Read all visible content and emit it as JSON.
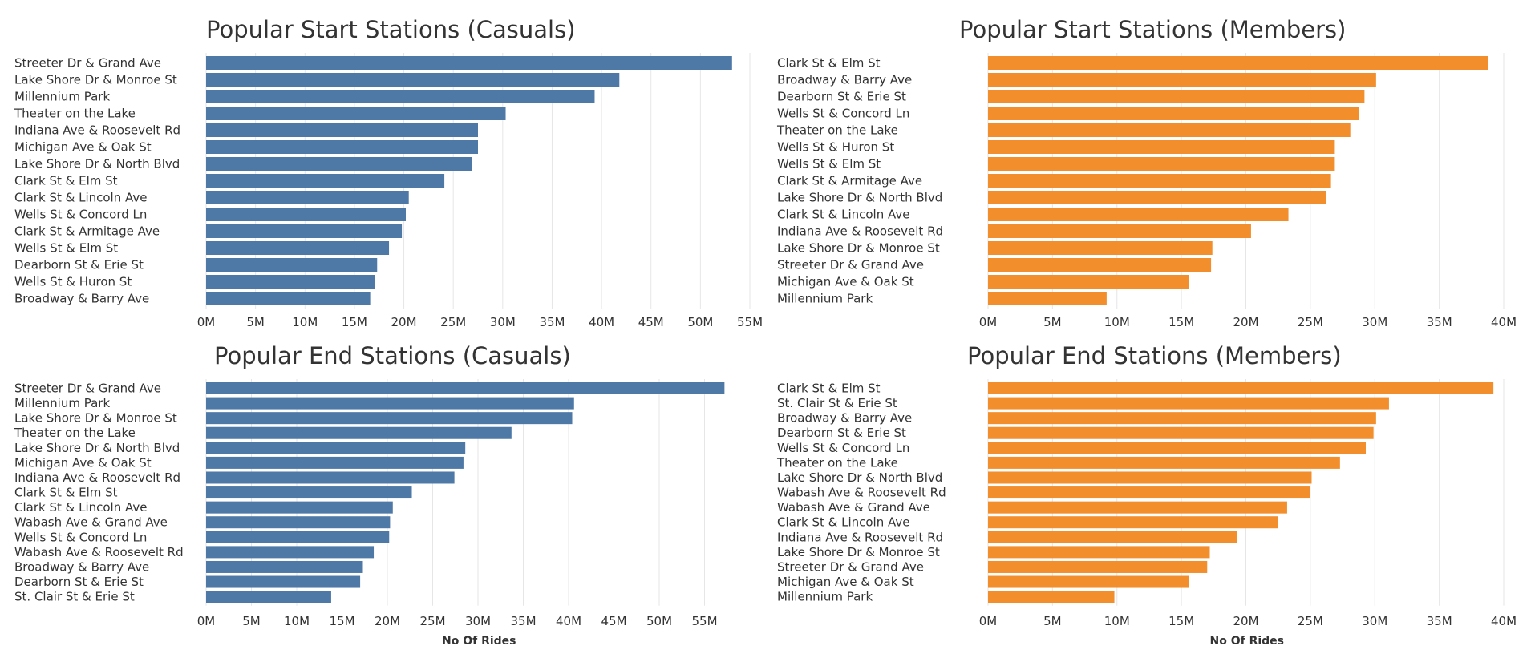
{
  "palette": {
    "casual": "#4e79a7",
    "member": "#f28e2b",
    "grid": "#e6e6e6",
    "text": "#333333"
  },
  "chart_data": [
    {
      "id": "start-casual",
      "type": "bar",
      "orientation": "horizontal",
      "title": "Popular Start Stations (Casuals)",
      "color_key": "casual",
      "categories": [
        "Streeter Dr & Grand Ave",
        "Lake Shore Dr & Monroe St",
        "Millennium Park",
        "Theater on the Lake",
        "Indiana Ave & Roosevelt Rd",
        "Michigan Ave & Oak St",
        "Lake Shore Dr & North Blvd",
        "Clark St & Elm St",
        "Clark St & Lincoln Ave",
        "Wells St & Concord Ln",
        "Clark St & Armitage Ave",
        "Wells St & Elm St",
        "Dearborn St & Erie St",
        "Wells St & Huron St",
        "Broadway & Barry Ave"
      ],
      "values": [
        53.2,
        41.8,
        39.3,
        30.3,
        27.5,
        27.5,
        26.9,
        24.1,
        20.5,
        20.2,
        19.8,
        18.5,
        17.3,
        17.1,
        16.6
      ],
      "xticks": [
        0,
        5,
        10,
        15,
        20,
        25,
        30,
        35,
        40,
        45,
        50,
        55
      ],
      "xtick_labels": [
        "0M",
        "5M",
        "10M",
        "15M",
        "20M",
        "25M",
        "30M",
        "35M",
        "40M",
        "45M",
        "50M",
        "55M"
      ],
      "xlim": [
        0,
        55
      ],
      "xlabel": "",
      "grid": true
    },
    {
      "id": "start-member",
      "type": "bar",
      "orientation": "horizontal",
      "title": "Popular Start Stations (Members)",
      "color_key": "member",
      "categories": [
        "Clark St & Elm St",
        "Broadway & Barry Ave",
        "Dearborn St & Erie St",
        "Wells St & Concord Ln",
        "Theater on the Lake",
        "Wells St & Huron St",
        "Wells St & Elm St",
        "Clark St & Armitage Ave",
        "Lake Shore Dr & North Blvd",
        "Clark St & Lincoln Ave",
        "Indiana Ave & Roosevelt Rd",
        "Lake Shore Dr & Monroe St",
        "Streeter Dr & Grand Ave",
        "Michigan Ave & Oak St",
        "Millennium Park"
      ],
      "values": [
        38.8,
        30.1,
        29.2,
        28.8,
        28.1,
        26.9,
        26.9,
        26.6,
        26.2,
        23.3,
        20.4,
        17.4,
        17.3,
        15.6,
        9.2
      ],
      "xticks": [
        0,
        5,
        10,
        15,
        20,
        25,
        30,
        35,
        40
      ],
      "xtick_labels": [
        "0M",
        "5M",
        "10M",
        "15M",
        "20M",
        "25M",
        "30M",
        "35M",
        "40M"
      ],
      "xlim": [
        0,
        40
      ],
      "xlabel": "",
      "grid": true
    },
    {
      "id": "end-casual",
      "type": "bar",
      "orientation": "horizontal",
      "title": "Popular End Stations (Casuals)",
      "color_key": "casual",
      "categories": [
        "Streeter Dr & Grand Ave",
        "Millennium Park",
        "Lake Shore Dr & Monroe St",
        "Theater on the Lake",
        "Lake Shore Dr & North Blvd",
        "Michigan Ave & Oak St",
        "Indiana Ave & Roosevelt Rd",
        "Clark St & Elm St",
        "Clark St & Lincoln Ave",
        "Wabash Ave & Grand Ave",
        "Wells St & Concord Ln",
        "Wabash Ave & Roosevelt Rd",
        "Broadway & Barry Ave",
        "Dearborn St & Erie St",
        "St. Clair St & Erie St"
      ],
      "values": [
        57.2,
        40.6,
        40.4,
        33.7,
        28.6,
        28.4,
        27.4,
        22.7,
        20.6,
        20.3,
        20.2,
        18.5,
        17.3,
        17.0,
        13.8
      ],
      "xticks": [
        0,
        5,
        10,
        15,
        20,
        25,
        30,
        35,
        40,
        45,
        50,
        55
      ],
      "xtick_labels": [
        "0M",
        "5M",
        "10M",
        "15M",
        "20M",
        "25M",
        "30M",
        "35M",
        "40M",
        "45M",
        "50M",
        "55M"
      ],
      "xlim": [
        0,
        60
      ],
      "xlabel": "No Of Rides",
      "grid": true
    },
    {
      "id": "end-member",
      "type": "bar",
      "orientation": "horizontal",
      "title": "Popular End Stations (Members)",
      "color_key": "member",
      "categories": [
        "Clark St & Elm St",
        "St. Clair St & Erie St",
        "Broadway & Barry Ave",
        "Dearborn St & Erie St",
        "Wells St & Concord Ln",
        "Theater on the Lake",
        "Lake Shore Dr & North Blvd",
        "Wabash Ave & Roosevelt Rd",
        "Wabash Ave & Grand Ave",
        "Clark St & Lincoln Ave",
        "Indiana Ave & Roosevelt Rd",
        "Lake Shore Dr & Monroe St",
        "Streeter Dr & Grand Ave",
        "Michigan Ave & Oak St",
        "Millennium Park"
      ],
      "values": [
        39.2,
        31.1,
        30.1,
        29.9,
        29.3,
        27.3,
        25.1,
        25.0,
        23.2,
        22.5,
        19.3,
        17.2,
        17.0,
        15.6,
        9.8
      ],
      "xticks": [
        0,
        5,
        10,
        15,
        20,
        25,
        30,
        35,
        40
      ],
      "xtick_labels": [
        "0M",
        "5M",
        "10M",
        "15M",
        "20M",
        "25M",
        "30M",
        "35M",
        "40M"
      ],
      "xlim": [
        0,
        40
      ],
      "xlabel": "No Of Rides",
      "grid": true
    }
  ]
}
